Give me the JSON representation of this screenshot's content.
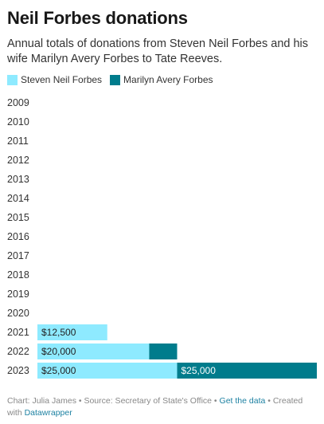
{
  "title": "Neil Forbes donations",
  "subtitle": "Annual totals of donations from Steven Neil Forbes and his wife Marilyn Avery Forbes to Tate Reeves.",
  "footer": {
    "credit": "Chart: Julia James • Source: Secretary of State's Office • ",
    "get_data": "Get the data",
    "created": " • Created with ",
    "datawrapper": "Datawrapper"
  },
  "colors": {
    "steven": "#8eeaff",
    "marilyn": "#007c8c"
  },
  "chart_data": {
    "type": "bar",
    "orientation": "horizontal",
    "stacked": true,
    "categories": [
      "2009",
      "2010",
      "2011",
      "2012",
      "2013",
      "2014",
      "2015",
      "2016",
      "2017",
      "2018",
      "2019",
      "2020",
      "2021",
      "2022",
      "2023"
    ],
    "series": [
      {
        "name": "Steven Neil Forbes",
        "color": "#8eeaff",
        "values": [
          0,
          0,
          0,
          0,
          0,
          0,
          0,
          0,
          0,
          0,
          0,
          0,
          12500,
          20000,
          25000
        ],
        "labels": [
          "",
          "",
          "",
          "",
          "",
          "",
          "",
          "",
          "",
          "",
          "",
          "",
          "$12,500",
          "$20,000",
          "$25,000"
        ]
      },
      {
        "name": "Marilyn Avery Forbes",
        "color": "#007c8c",
        "values": [
          0,
          0,
          0,
          0,
          0,
          0,
          0,
          0,
          0,
          0,
          0,
          0,
          0,
          5000,
          25000
        ],
        "labels": [
          "",
          "",
          "",
          "",
          "",
          "",
          "",
          "",
          "",
          "",
          "",
          "",
          "",
          "",
          "$25,000"
        ]
      }
    ],
    "xlim": [
      0,
      50000
    ],
    "grid": false,
    "legend": "top-left"
  }
}
